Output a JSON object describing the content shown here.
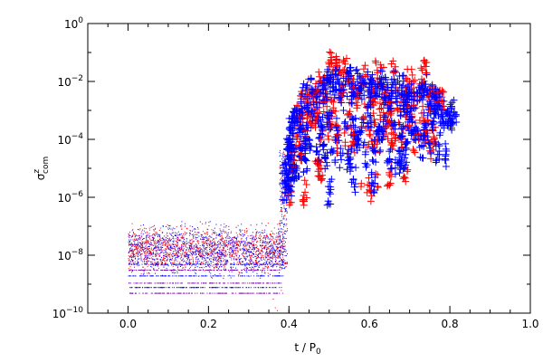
{
  "chart_data": {
    "type": "scatter",
    "xlabel": "t / P",
    "xlabel_sub": "0",
    "ylabel": "σ",
    "ylabel_sup": "z",
    "ylabel_sub": "com",
    "xlim": [
      -0.1,
      1.0
    ],
    "ylim": [
      1e-10,
      1
    ],
    "y_scale": "log",
    "grid": false,
    "x_ticks": [
      {
        "value": 0.0,
        "label": "0.0"
      },
      {
        "value": 0.2,
        "label": "0.2"
      },
      {
        "value": 0.4,
        "label": "0.4"
      },
      {
        "value": 0.6,
        "label": "0.6"
      },
      {
        "value": 0.8,
        "label": "0.8"
      },
      {
        "value": 1.0,
        "label": "1.0"
      }
    ],
    "y_ticks": [
      {
        "value": 1e-10,
        "base": "10",
        "exp": "−10"
      },
      {
        "value": 1e-08,
        "base": "10",
        "exp": "−8"
      },
      {
        "value": 1e-06,
        "base": "10",
        "exp": "−6"
      },
      {
        "value": 0.0001,
        "base": "10",
        "exp": "−4"
      },
      {
        "value": 0.01,
        "base": "10",
        "exp": "−2"
      },
      {
        "value": 1,
        "base": "10",
        "exp": "0"
      }
    ],
    "series": [
      {
        "color": "#ff0000",
        "points": [
          [
            0.4,
            1.2e-06
          ],
          [
            0.41,
            2e-05
          ],
          [
            0.42,
            0.00012
          ],
          [
            0.43,
            0.0006
          ],
          [
            0.44,
            0.002
          ],
          [
            0.45,
            0.005
          ],
          [
            0.46,
            0.003
          ],
          [
            0.47,
            0.004
          ],
          [
            0.48,
            0.01
          ],
          [
            0.49,
            0.006
          ],
          [
            0.5,
            0.04
          ],
          [
            0.51,
            0.025
          ],
          [
            0.52,
            0.035
          ],
          [
            0.53,
            0.02
          ],
          [
            0.54,
            0.04
          ],
          [
            0.55,
            0.015
          ],
          [
            0.56,
            0.006
          ],
          [
            0.57,
            0.004
          ],
          [
            0.58,
            0.012
          ],
          [
            0.59,
            0.015
          ],
          [
            0.6,
            0.005
          ],
          [
            0.61,
            0.005
          ],
          [
            0.62,
            0.02
          ],
          [
            0.63,
            0.03
          ],
          [
            0.64,
            0.005
          ],
          [
            0.65,
            0.002
          ],
          [
            0.66,
            0.02
          ],
          [
            0.67,
            0.005
          ],
          [
            0.68,
            0.002
          ],
          [
            0.69,
            0.005
          ],
          [
            0.7,
            0.01
          ],
          [
            0.71,
            0.006
          ],
          [
            0.72,
            0.003
          ],
          [
            0.73,
            0.012
          ],
          [
            0.74,
            0.02
          ],
          [
            0.75,
            0.003
          ],
          [
            0.76,
            0.005
          ],
          [
            0.77,
            0.004
          ],
          [
            0.42,
            0.0015
          ],
          [
            0.43,
            0.0025
          ],
          [
            0.45,
            0.001
          ],
          [
            0.47,
            0.0008
          ],
          [
            0.49,
            0.002
          ],
          [
            0.51,
            0.001
          ],
          [
            0.53,
            0.004
          ],
          [
            0.55,
            0.0007
          ],
          [
            0.57,
            0.0015
          ],
          [
            0.59,
            0.0006
          ],
          [
            0.61,
            0.0008
          ],
          [
            0.63,
            0.0012
          ],
          [
            0.65,
            0.0004
          ],
          [
            0.67,
            0.001
          ],
          [
            0.69,
            0.0006
          ],
          [
            0.71,
            0.0015
          ],
          [
            0.73,
            0.0008
          ],
          [
            0.75,
            0.001
          ],
          [
            0.77,
            0.002
          ],
          [
            0.44,
            0.0002
          ],
          [
            0.46,
            0.0003
          ],
          [
            0.48,
            0.0001
          ],
          [
            0.5,
            0.00025
          ],
          [
            0.52,
            0.00015
          ],
          [
            0.54,
            6e-05
          ],
          [
            0.56,
            0.00015
          ],
          [
            0.58,
            0.00025
          ],
          [
            0.6,
            0.00015
          ],
          [
            0.62,
            0.0001
          ],
          [
            0.64,
            0.00025
          ],
          [
            0.66,
            0.00015
          ],
          [
            0.68,
            8e-05
          ],
          [
            0.7,
            0.0003
          ],
          [
            0.72,
            0.00015
          ],
          [
            0.74,
            0.0002
          ],
          [
            0.76,
            0.0001
          ],
          [
            0.78,
            0.002
          ],
          [
            0.43,
            3e-05
          ],
          [
            0.47,
            1.5e-05
          ],
          [
            0.52,
            5e-05
          ],
          [
            0.56,
            8e-05
          ],
          [
            0.61,
            5e-05
          ],
          [
            0.66,
            6e-05
          ],
          [
            0.71,
            4e-05
          ],
          [
            0.75,
            4e-05
          ],
          [
            0.44,
            1.5e-06
          ],
          [
            0.48,
            1e-05
          ],
          [
            0.58,
            3e-06
          ],
          [
            0.6,
            1.8e-06
          ],
          [
            0.62,
            6e-06
          ],
          [
            0.65,
            6e-06
          ],
          [
            0.69,
            3.5e-06
          ]
        ]
      },
      {
        "color": "#0000ff",
        "points": [
          [
            0.39,
            1.5e-06
          ],
          [
            0.395,
            6e-06
          ],
          [
            0.4,
            0.0001
          ],
          [
            0.405,
            0.0002
          ],
          [
            0.41,
            0.0005
          ],
          [
            0.42,
            0.001
          ],
          [
            0.43,
            0.002
          ],
          [
            0.44,
            0.003
          ],
          [
            0.45,
            0.001
          ],
          [
            0.46,
            0.005
          ],
          [
            0.47,
            0.003
          ],
          [
            0.48,
            0.004
          ],
          [
            0.49,
            0.006
          ],
          [
            0.5,
            0.01
          ],
          [
            0.51,
            0.006
          ],
          [
            0.52,
            0.012
          ],
          [
            0.53,
            0.005
          ],
          [
            0.54,
            0.008
          ],
          [
            0.55,
            0.015
          ],
          [
            0.56,
            0.004
          ],
          [
            0.57,
            0.01
          ],
          [
            0.58,
            0.006
          ],
          [
            0.59,
            0.008
          ],
          [
            0.6,
            0.005
          ],
          [
            0.61,
            0.01
          ],
          [
            0.62,
            0.003
          ],
          [
            0.63,
            0.012
          ],
          [
            0.64,
            0.005
          ],
          [
            0.65,
            0.003
          ],
          [
            0.66,
            0.008
          ],
          [
            0.67,
            0.004
          ],
          [
            0.68,
            0.006
          ],
          [
            0.69,
            0.002
          ],
          [
            0.7,
            0.005
          ],
          [
            0.71,
            0.003
          ],
          [
            0.72,
            0.004
          ],
          [
            0.73,
            0.006
          ],
          [
            0.74,
            0.008
          ],
          [
            0.75,
            0.002
          ],
          [
            0.76,
            0.003
          ],
          [
            0.77,
            0.0015
          ],
          [
            0.78,
            0.001
          ],
          [
            0.79,
            0.0008
          ],
          [
            0.8,
            0.0007
          ],
          [
            0.81,
            0.0008
          ],
          [
            0.41,
            0.0001
          ],
          [
            0.42,
            0.0004
          ],
          [
            0.43,
            0.0005
          ],
          [
            0.44,
            0.00015
          ],
          [
            0.46,
            0.0006
          ],
          [
            0.48,
            0.0003
          ],
          [
            0.5,
            0.0005
          ],
          [
            0.52,
            0.0002
          ],
          [
            0.54,
            0.0004
          ],
          [
            0.56,
            0.0003
          ],
          [
            0.58,
            0.0002
          ],
          [
            0.6,
            0.0006
          ],
          [
            0.62,
            0.0002
          ],
          [
            0.64,
            0.0006
          ],
          [
            0.66,
            0.0003
          ],
          [
            0.68,
            0.00025
          ],
          [
            0.7,
            0.0005
          ],
          [
            0.72,
            0.0002
          ],
          [
            0.74,
            0.0003
          ],
          [
            0.76,
            0.0004
          ],
          [
            0.78,
            0.0003
          ],
          [
            0.8,
            0.0005
          ],
          [
            0.4,
            4e-05
          ],
          [
            0.405,
            2e-05
          ],
          [
            0.41,
            5e-06
          ],
          [
            0.43,
            5e-05
          ],
          [
            0.45,
            0.0001
          ],
          [
            0.47,
            4e-05
          ],
          [
            0.49,
            2.5e-05
          ],
          [
            0.51,
            4e-05
          ],
          [
            0.53,
            2e-05
          ],
          [
            0.55,
            2e-05
          ],
          [
            0.57,
            0.0001
          ],
          [
            0.59,
            3e-05
          ],
          [
            0.61,
            4e-05
          ],
          [
            0.63,
            0.0001
          ],
          [
            0.65,
            2e-05
          ],
          [
            0.67,
            1.5e-05
          ],
          [
            0.69,
            3e-05
          ],
          [
            0.71,
            0.0002
          ],
          [
            0.73,
            6e-05
          ],
          [
            0.75,
            5e-05
          ],
          [
            0.77,
            3e-05
          ],
          [
            0.79,
            3e-05
          ],
          [
            0.4,
            2e-06
          ],
          [
            0.39,
            8e-06
          ],
          [
            0.42,
            1e-05
          ],
          [
            0.44,
            2e-05
          ],
          [
            0.5,
            1.5e-06
          ],
          [
            0.56,
            4e-06
          ],
          [
            0.61,
            3e-06
          ],
          [
            0.68,
            2e-05
          ]
        ]
      }
    ]
  }
}
